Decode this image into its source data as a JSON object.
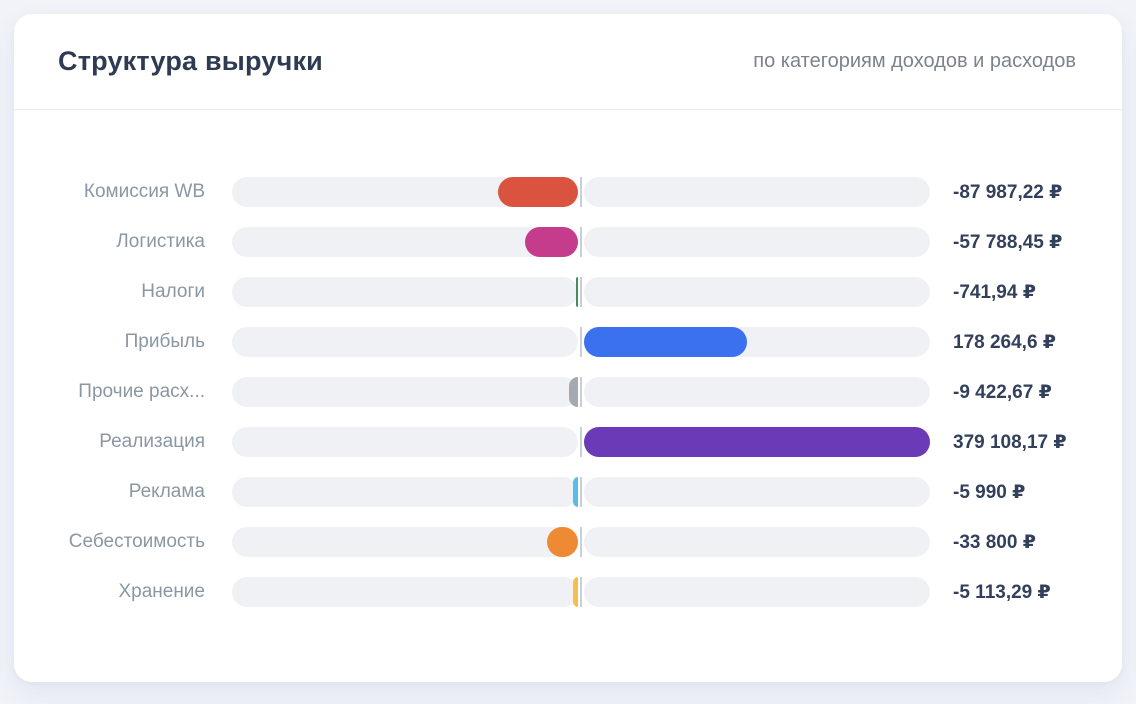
{
  "header": {
    "title": "Структура выручки",
    "subtitle": "по категориям доходов и расходов"
  },
  "chart_data": {
    "type": "bar",
    "variant": "horizontal-diverging-pill",
    "title": "Структура выручки",
    "subtitle": "по категориям доходов и расходов",
    "currency": "₽",
    "axis_center": 0,
    "axis_max_abs": 379108.17,
    "legend": "none",
    "grid": "off",
    "track_color": "#f0f1f5",
    "axis_divider_color": "#c9cfd6",
    "categories": [
      "Комиссия WB",
      "Логистика",
      "Налоги",
      "Прибыль",
      "Прочие расх...",
      "Реализация",
      "Реклама",
      "Себестоимость",
      "Хранение"
    ],
    "rows": [
      {
        "label": "Комиссия WB",
        "value": -87987.22,
        "display": "-87 987,22 ₽",
        "color": "#d9533f"
      },
      {
        "label": "Логистика",
        "value": -57788.45,
        "display": "-57 788,45 ₽",
        "color": "#c43c8b"
      },
      {
        "label": "Налоги",
        "value": -741.94,
        "display": "-741,94 ₽",
        "color": "#3f8f5e"
      },
      {
        "label": "Прибыль",
        "value": 178264.6,
        "display": "178 264,6 ₽",
        "color": "#3b70ee"
      },
      {
        "label": "Прочие расх...",
        "value": -9422.67,
        "display": "-9 422,67 ₽",
        "color": "#a3aab4"
      },
      {
        "label": "Реализация",
        "value": 379108.17,
        "display": "379 108,17 ₽",
        "color": "#6b3ab7"
      },
      {
        "label": "Реклама",
        "value": -5990,
        "display": "-5 990 ₽",
        "color": "#56bee8"
      },
      {
        "label": "Себестоимость",
        "value": -33800,
        "display": "-33 800 ₽",
        "color": "#ee8a33"
      },
      {
        "label": "Хранение",
        "value": -5113.29,
        "display": "-5 113,29 ₽",
        "color": "#f4c04a"
      }
    ]
  }
}
